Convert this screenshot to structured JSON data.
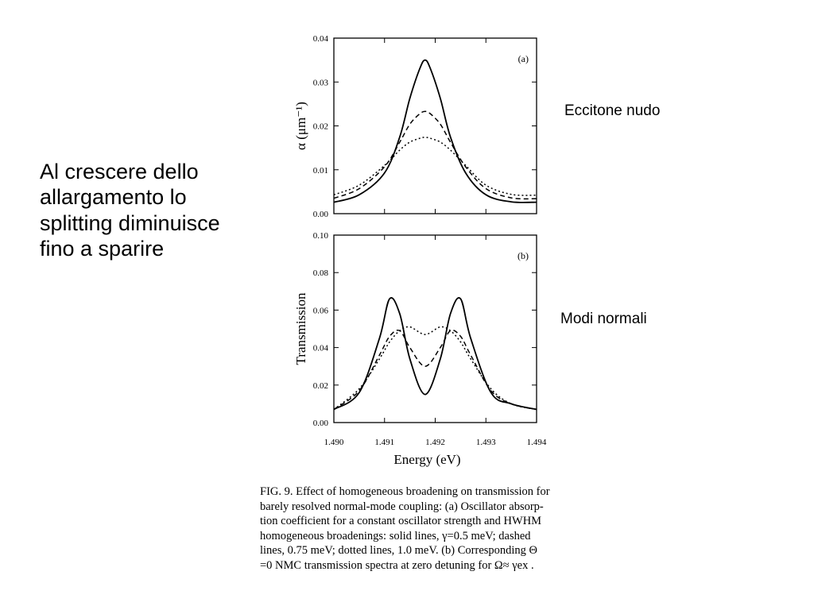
{
  "slide": {
    "left_text_lines": [
      "Al crescere dello",
      "allargamento lo",
      "splitting diminuisce",
      "fino a sparire"
    ],
    "label_top": "Eccitone nudo",
    "label_bottom": "Modi normali"
  },
  "caption_lines": [
    "FIG. 9. Effect of homogeneous broadening on transmission for",
    "barely resolved normal-mode coupling: (a) Oscillator absorp-",
    "tion coefficient for a constant oscillator strength and HWHM",
    "homogeneous broadenings: solid lines, γ=0.5 meV; dashed",
    "lines, 0.75 meV; dotted lines, 1.0 meV. (b) Corresponding Θ",
    "=0 NMC transmission spectra at zero detuning for Ω≈ γex ."
  ],
  "chart_data": [
    {
      "type": "line",
      "panel": "(a)",
      "ylabel": "α (μm⁻¹)",
      "xlim": [
        1.49,
        1.494
      ],
      "ylim": [
        0,
        0.04
      ],
      "yticks": [
        "0.00",
        "0.01",
        "0.02",
        "0.03",
        "0.04"
      ],
      "x": [
        1.49,
        1.4905,
        1.491,
        1.4913,
        1.4915,
        1.4917,
        1.4918,
        1.4919,
        1.4921,
        1.4923,
        1.4926,
        1.493,
        1.4935,
        1.494
      ],
      "series": [
        {
          "values": [
            0.0026,
            0.0043,
            0.0093,
            0.0175,
            0.0263,
            0.0332,
            0.035,
            0.0332,
            0.0263,
            0.0175,
            0.0093,
            0.0043,
            0.0027,
            0.0026
          ],
          "style": "solid"
        },
        {
          "values": [
            0.0035,
            0.0057,
            0.0107,
            0.0163,
            0.0204,
            0.0228,
            0.0233,
            0.0228,
            0.0204,
            0.0163,
            0.0107,
            0.0057,
            0.0036,
            0.0034
          ],
          "style": "dashed"
        },
        {
          "values": [
            0.0043,
            0.0065,
            0.011,
            0.0145,
            0.0163,
            0.0172,
            0.0174,
            0.0172,
            0.0163,
            0.0145,
            0.011,
            0.0065,
            0.0044,
            0.0042
          ],
          "style": "dotted"
        }
      ]
    },
    {
      "type": "line",
      "panel": "(b)",
      "xlabel": "Energy (eV)",
      "ylabel": "Transmission",
      "xlim": [
        1.49,
        1.494
      ],
      "ylim": [
        0,
        0.1
      ],
      "xticks": [
        "1.490",
        "1.491",
        "1.492",
        "1.493",
        "1.494"
      ],
      "yticks": [
        "0.00",
        "0.02",
        "0.04",
        "0.06",
        "0.08",
        "0.10"
      ],
      "x": [
        1.49,
        1.4905,
        1.4909,
        1.4911,
        1.4913,
        1.4915,
        1.4918,
        1.4921,
        1.4923,
        1.4925,
        1.4927,
        1.4931,
        1.4935,
        1.494
      ],
      "series": [
        {
          "values": [
            0.007,
            0.016,
            0.045,
            0.066,
            0.058,
            0.034,
            0.015,
            0.034,
            0.058,
            0.066,
            0.045,
            0.016,
            0.01,
            0.007
          ],
          "style": "solid"
        },
        {
          "values": [
            0.007,
            0.017,
            0.036,
            0.046,
            0.049,
            0.04,
            0.03,
            0.04,
            0.049,
            0.046,
            0.036,
            0.017,
            0.01,
            0.007
          ],
          "style": "dashed"
        },
        {
          "values": [
            0.007,
            0.018,
            0.034,
            0.043,
            0.049,
            0.051,
            0.047,
            0.051,
            0.049,
            0.043,
            0.034,
            0.018,
            0.01,
            0.007
          ],
          "style": "dotted"
        }
      ]
    }
  ]
}
